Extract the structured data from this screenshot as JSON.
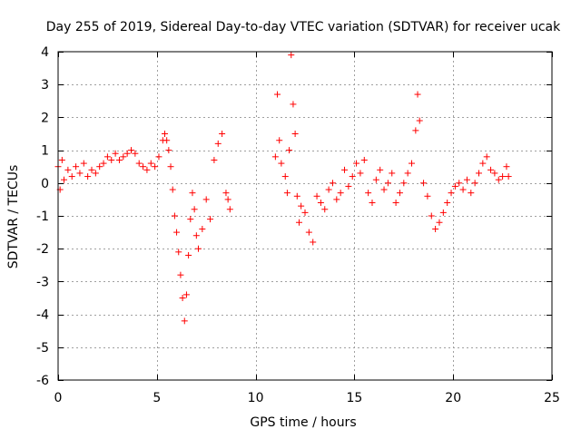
{
  "chart_data": {
    "type": "scatter",
    "title": "Day 255 of 2019, Sidereal Day-to-day VTEC variation (SDTVAR) for receiver ucak",
    "xlabel": "GPS time / hours",
    "ylabel": "SDTVAR / TECUs",
    "xlim": [
      0,
      25
    ],
    "ylim": [
      -6,
      4
    ],
    "xticks": [
      0,
      5,
      10,
      15,
      20,
      25
    ],
    "yticks": [
      -6,
      -5,
      -4,
      -3,
      -2,
      -1,
      0,
      1,
      2,
      3,
      4
    ],
    "xtick_labels": [
      "0",
      "5",
      "10",
      "15",
      "20",
      "25"
    ],
    "ytick_labels": [
      "-6",
      "-5",
      "-4",
      "-3",
      "-2",
      "-1",
      "0",
      "1",
      "2",
      "3",
      "4"
    ],
    "grid": true,
    "marker": "+",
    "color": "#ff0000",
    "series": [
      {
        "name": "SDTVAR",
        "points": [
          [
            0.0,
            0.5
          ],
          [
            0.1,
            -0.2
          ],
          [
            0.2,
            0.7
          ],
          [
            0.3,
            0.1
          ],
          [
            0.5,
            0.4
          ],
          [
            0.7,
            0.2
          ],
          [
            0.9,
            0.5
          ],
          [
            1.1,
            0.3
          ],
          [
            1.3,
            0.6
          ],
          [
            1.5,
            0.2
          ],
          [
            1.7,
            0.4
          ],
          [
            1.9,
            0.3
          ],
          [
            2.1,
            0.5
          ],
          [
            2.3,
            0.6
          ],
          [
            2.5,
            0.8
          ],
          [
            2.7,
            0.7
          ],
          [
            2.9,
            0.9
          ],
          [
            3.1,
            0.7
          ],
          [
            3.3,
            0.8
          ],
          [
            3.5,
            0.9
          ],
          [
            3.7,
            1.0
          ],
          [
            3.9,
            0.9
          ],
          [
            4.1,
            0.6
          ],
          [
            4.3,
            0.5
          ],
          [
            4.5,
            0.4
          ],
          [
            4.7,
            0.6
          ],
          [
            4.9,
            0.5
          ],
          [
            5.1,
            0.8
          ],
          [
            5.3,
            1.3
          ],
          [
            5.4,
            1.5
          ],
          [
            5.5,
            1.3
          ],
          [
            5.6,
            1.0
          ],
          [
            5.7,
            0.5
          ],
          [
            5.8,
            -0.2
          ],
          [
            5.9,
            -1.0
          ],
          [
            6.0,
            -1.5
          ],
          [
            6.1,
            -2.1
          ],
          [
            6.2,
            -2.8
          ],
          [
            6.3,
            -3.5
          ],
          [
            6.4,
            -4.2
          ],
          [
            6.5,
            -3.4
          ],
          [
            6.6,
            -2.2
          ],
          [
            6.7,
            -1.1
          ],
          [
            6.8,
            -0.3
          ],
          [
            6.9,
            -0.8
          ],
          [
            7.0,
            -1.6
          ],
          [
            7.1,
            -2.0
          ],
          [
            7.3,
            -1.4
          ],
          [
            7.5,
            -0.5
          ],
          [
            7.7,
            -1.1
          ],
          [
            7.9,
            0.7
          ],
          [
            8.1,
            1.2
          ],
          [
            8.3,
            1.5
          ],
          [
            8.5,
            -0.3
          ],
          [
            8.6,
            -0.5
          ],
          [
            8.7,
            -0.8
          ],
          [
            11.0,
            0.8
          ],
          [
            11.1,
            2.7
          ],
          [
            11.2,
            1.3
          ],
          [
            11.3,
            0.6
          ],
          [
            11.5,
            0.2
          ],
          [
            11.6,
            -0.3
          ],
          [
            11.7,
            1.0
          ],
          [
            11.8,
            3.9
          ],
          [
            11.9,
            2.4
          ],
          [
            12.0,
            1.5
          ],
          [
            12.1,
            -0.4
          ],
          [
            12.2,
            -1.2
          ],
          [
            12.3,
            -0.7
          ],
          [
            12.5,
            -0.9
          ],
          [
            12.7,
            -1.5
          ],
          [
            12.9,
            -1.8
          ],
          [
            13.1,
            -0.4
          ],
          [
            13.3,
            -0.6
          ],
          [
            13.5,
            -0.8
          ],
          [
            13.7,
            -0.2
          ],
          [
            13.9,
            0.0
          ],
          [
            14.1,
            -0.5
          ],
          [
            14.3,
            -0.3
          ],
          [
            14.5,
            0.4
          ],
          [
            14.7,
            -0.1
          ],
          [
            14.9,
            0.2
          ],
          [
            15.1,
            0.6
          ],
          [
            15.3,
            0.3
          ],
          [
            15.5,
            0.7
          ],
          [
            15.7,
            -0.3
          ],
          [
            15.9,
            -0.6
          ],
          [
            16.1,
            0.1
          ],
          [
            16.3,
            0.4
          ],
          [
            16.5,
            -0.2
          ],
          [
            16.7,
            0.0
          ],
          [
            16.9,
            0.3
          ],
          [
            17.1,
            -0.6
          ],
          [
            17.3,
            -0.3
          ],
          [
            17.5,
            0.0
          ],
          [
            17.7,
            0.3
          ],
          [
            17.9,
            0.6
          ],
          [
            18.1,
            1.6
          ],
          [
            18.2,
            2.7
          ],
          [
            18.3,
            1.9
          ],
          [
            18.5,
            0.0
          ],
          [
            18.7,
            -0.4
          ],
          [
            18.9,
            -1.0
          ],
          [
            19.1,
            -1.4
          ],
          [
            19.3,
            -1.2
          ],
          [
            19.5,
            -0.9
          ],
          [
            19.7,
            -0.6
          ],
          [
            19.9,
            -0.3
          ],
          [
            20.1,
            -0.1
          ],
          [
            20.3,
            0.0
          ],
          [
            20.5,
            -0.2
          ],
          [
            20.7,
            0.1
          ],
          [
            20.9,
            -0.3
          ],
          [
            21.1,
            0.0
          ],
          [
            21.3,
            0.3
          ],
          [
            21.5,
            0.6
          ],
          [
            21.7,
            0.8
          ],
          [
            21.9,
            0.4
          ],
          [
            22.1,
            0.3
          ],
          [
            22.3,
            0.1
          ],
          [
            22.5,
            0.2
          ],
          [
            22.7,
            0.5
          ],
          [
            22.8,
            0.2
          ]
        ]
      }
    ]
  }
}
